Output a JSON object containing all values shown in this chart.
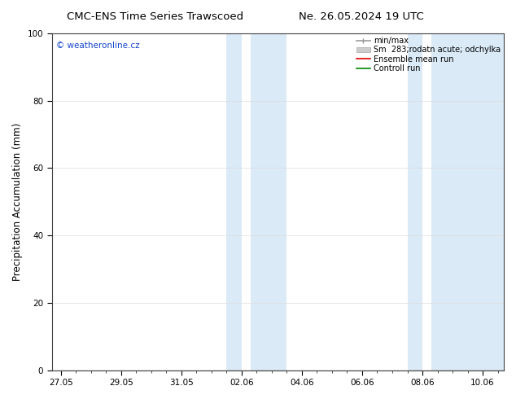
{
  "title_left": "CMC-ENS Time Series Trawscoed",
  "title_right": "Ne. 26.05.2024 19 UTC",
  "ylabel": "Precipitation Accumulation (mm)",
  "ylim": [
    0,
    100
  ],
  "yticks": [
    0,
    20,
    40,
    60,
    80,
    100
  ],
  "xtick_labels": [
    "27.05",
    "29.05",
    "31.05",
    "02.06",
    "04.06",
    "06.06",
    "08.06",
    "10.06"
  ],
  "xtick_positions": [
    0,
    2,
    4,
    6,
    8,
    10,
    12,
    14
  ],
  "xlim": [
    -0.3,
    14.7
  ],
  "shaded_bands": [
    {
      "xmin": 5.5,
      "xmax": 6.0
    },
    {
      "xmin": 6.3,
      "xmax": 7.5
    },
    {
      "xmin": 11.5,
      "xmax": 12.0
    },
    {
      "xmin": 12.3,
      "xmax": 14.7
    }
  ],
  "shade_color": "#daeaf7",
  "watermark": "© weatheronline.cz",
  "watermark_color": "#1144cc",
  "background_color": "#ffffff",
  "plot_bg_color": "#ffffff",
  "grid_color": "#dddddd",
  "tick_fontsize": 7.5,
  "label_fontsize": 8.5,
  "title_fontsize": 9.5,
  "legend_fontsize": 7
}
